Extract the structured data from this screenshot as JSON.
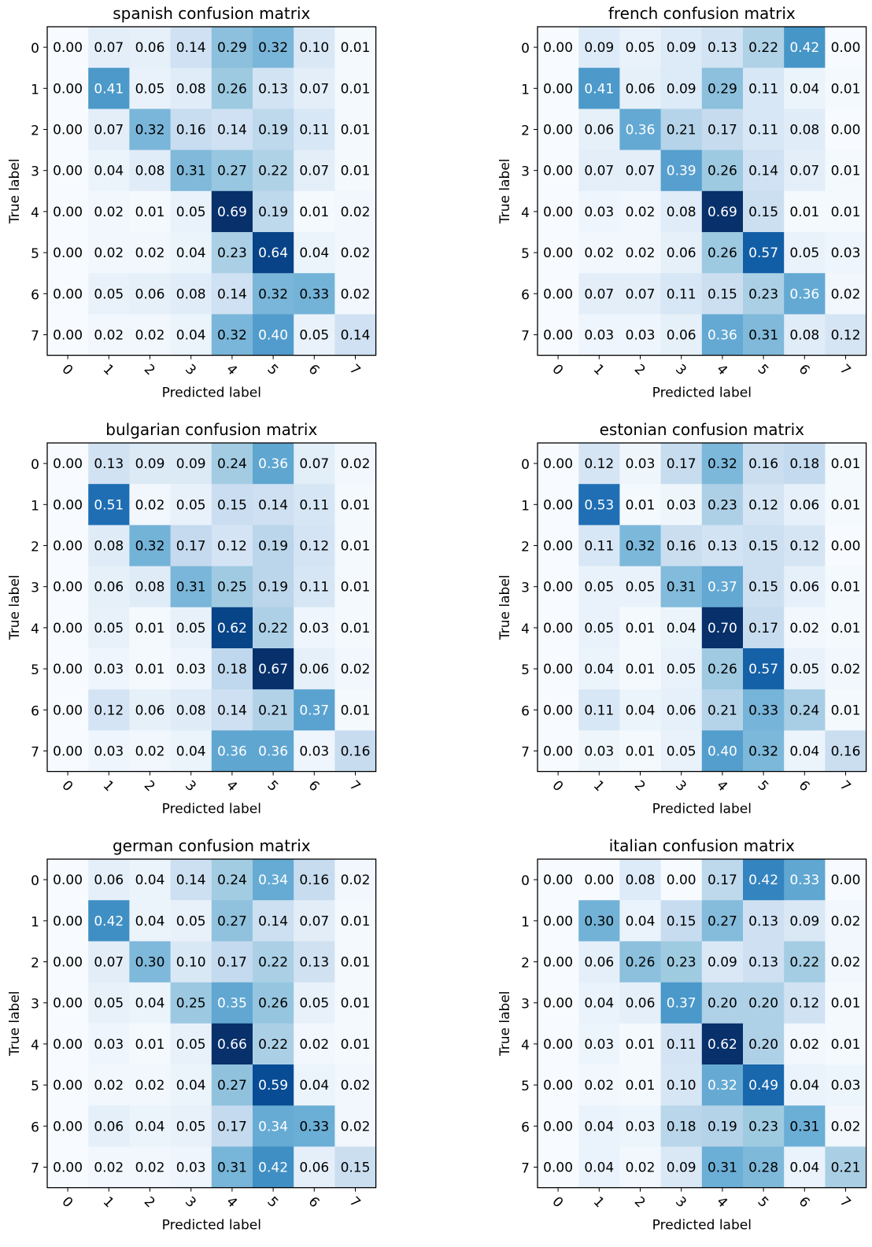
{
  "chart_data": [
    {
      "type": "heatmap",
      "title": "spanish confusion matrix",
      "xlabel": "Predicted label",
      "ylabel": "True label",
      "x_ticks": [
        "0",
        "1",
        "2",
        "3",
        "4",
        "5",
        "6",
        "7"
      ],
      "y_ticks": [
        "0",
        "1",
        "2",
        "3",
        "4",
        "5",
        "6",
        "7"
      ],
      "colormap": "Blues",
      "values": [
        [
          0.0,
          0.07,
          0.06,
          0.14,
          0.29,
          0.32,
          0.1,
          0.01
        ],
        [
          0.0,
          0.41,
          0.05,
          0.08,
          0.26,
          0.13,
          0.07,
          0.01
        ],
        [
          0.0,
          0.07,
          0.32,
          0.16,
          0.14,
          0.19,
          0.11,
          0.01
        ],
        [
          0.0,
          0.04,
          0.08,
          0.31,
          0.27,
          0.22,
          0.07,
          0.01
        ],
        [
          0.0,
          0.02,
          0.01,
          0.05,
          0.69,
          0.19,
          0.01,
          0.02
        ],
        [
          0.0,
          0.02,
          0.02,
          0.04,
          0.23,
          0.64,
          0.04,
          0.02
        ],
        [
          0.0,
          0.05,
          0.06,
          0.08,
          0.14,
          0.32,
          0.33,
          0.02
        ],
        [
          0.0,
          0.02,
          0.02,
          0.04,
          0.32,
          0.4,
          0.05,
          0.14
        ]
      ]
    },
    {
      "type": "heatmap",
      "title": "french confusion matrix",
      "xlabel": "Predicted label",
      "ylabel": "True label",
      "x_ticks": [
        "0",
        "1",
        "2",
        "3",
        "4",
        "5",
        "6",
        "7"
      ],
      "y_ticks": [
        "0",
        "1",
        "2",
        "3",
        "4",
        "5",
        "6",
        "7"
      ],
      "colormap": "Blues",
      "values": [
        [
          0.0,
          0.09,
          0.05,
          0.09,
          0.13,
          0.22,
          0.42,
          0.0
        ],
        [
          0.0,
          0.41,
          0.06,
          0.09,
          0.29,
          0.11,
          0.04,
          0.01
        ],
        [
          0.0,
          0.06,
          0.36,
          0.21,
          0.17,
          0.11,
          0.08,
          0.0
        ],
        [
          0.0,
          0.07,
          0.07,
          0.39,
          0.26,
          0.14,
          0.07,
          0.01
        ],
        [
          0.0,
          0.03,
          0.02,
          0.08,
          0.69,
          0.15,
          0.01,
          0.01
        ],
        [
          0.0,
          0.02,
          0.02,
          0.06,
          0.26,
          0.57,
          0.05,
          0.03
        ],
        [
          0.0,
          0.07,
          0.07,
          0.11,
          0.15,
          0.23,
          0.36,
          0.02
        ],
        [
          0.0,
          0.03,
          0.03,
          0.06,
          0.36,
          0.31,
          0.08,
          0.12
        ]
      ]
    },
    {
      "type": "heatmap",
      "title": "bulgarian confusion matrix",
      "xlabel": "Predicted label",
      "ylabel": "True label",
      "x_ticks": [
        "0",
        "1",
        "2",
        "3",
        "4",
        "5",
        "6",
        "7"
      ],
      "y_ticks": [
        "0",
        "1",
        "2",
        "3",
        "4",
        "5",
        "6",
        "7"
      ],
      "colormap": "Blues",
      "values": [
        [
          0.0,
          0.13,
          0.09,
          0.09,
          0.24,
          0.36,
          0.07,
          0.02
        ],
        [
          0.0,
          0.51,
          0.02,
          0.05,
          0.15,
          0.14,
          0.11,
          0.01
        ],
        [
          0.0,
          0.08,
          0.32,
          0.17,
          0.12,
          0.19,
          0.12,
          0.01
        ],
        [
          0.0,
          0.06,
          0.08,
          0.31,
          0.25,
          0.19,
          0.11,
          0.01
        ],
        [
          0.0,
          0.05,
          0.01,
          0.05,
          0.62,
          0.22,
          0.03,
          0.01
        ],
        [
          0.0,
          0.03,
          0.01,
          0.03,
          0.18,
          0.67,
          0.06,
          0.02
        ],
        [
          0.0,
          0.12,
          0.06,
          0.08,
          0.14,
          0.21,
          0.37,
          0.01
        ],
        [
          0.0,
          0.03,
          0.02,
          0.04,
          0.36,
          0.36,
          0.03,
          0.16
        ]
      ]
    },
    {
      "type": "heatmap",
      "title": "estonian confusion matrix",
      "xlabel": "Predicted label",
      "ylabel": "True label",
      "x_ticks": [
        "0",
        "1",
        "2",
        "3",
        "4",
        "5",
        "6",
        "7"
      ],
      "y_ticks": [
        "0",
        "1",
        "2",
        "3",
        "4",
        "5",
        "6",
        "7"
      ],
      "colormap": "Blues",
      "values": [
        [
          0.0,
          0.12,
          0.03,
          0.17,
          0.32,
          0.16,
          0.18,
          0.01
        ],
        [
          0.0,
          0.53,
          0.01,
          0.03,
          0.23,
          0.12,
          0.06,
          0.01
        ],
        [
          0.0,
          0.11,
          0.32,
          0.16,
          0.13,
          0.15,
          0.12,
          0.0
        ],
        [
          0.0,
          0.05,
          0.05,
          0.31,
          0.37,
          0.15,
          0.06,
          0.01
        ],
        [
          0.0,
          0.05,
          0.01,
          0.04,
          0.7,
          0.17,
          0.02,
          0.01
        ],
        [
          0.0,
          0.04,
          0.01,
          0.05,
          0.26,
          0.57,
          0.05,
          0.02
        ],
        [
          0.0,
          0.11,
          0.04,
          0.06,
          0.21,
          0.33,
          0.24,
          0.01
        ],
        [
          0.0,
          0.03,
          0.01,
          0.05,
          0.4,
          0.32,
          0.04,
          0.16
        ]
      ]
    },
    {
      "type": "heatmap",
      "title": "german confusion matrix",
      "xlabel": "Predicted label",
      "ylabel": "True label",
      "x_ticks": [
        "0",
        "1",
        "2",
        "3",
        "4",
        "5",
        "6",
        "7"
      ],
      "y_ticks": [
        "0",
        "1",
        "2",
        "3",
        "4",
        "5",
        "6",
        "7"
      ],
      "colormap": "Blues",
      "values": [
        [
          0.0,
          0.06,
          0.04,
          0.14,
          0.24,
          0.34,
          0.16,
          0.02
        ],
        [
          0.0,
          0.42,
          0.04,
          0.05,
          0.27,
          0.14,
          0.07,
          0.01
        ],
        [
          0.0,
          0.07,
          0.3,
          0.1,
          0.17,
          0.22,
          0.13,
          0.01
        ],
        [
          0.0,
          0.05,
          0.04,
          0.25,
          0.35,
          0.26,
          0.05,
          0.01
        ],
        [
          0.0,
          0.03,
          0.01,
          0.05,
          0.66,
          0.22,
          0.02,
          0.01
        ],
        [
          0.0,
          0.02,
          0.02,
          0.04,
          0.27,
          0.59,
          0.04,
          0.02
        ],
        [
          0.0,
          0.06,
          0.04,
          0.05,
          0.17,
          0.34,
          0.33,
          0.02
        ],
        [
          0.0,
          0.02,
          0.02,
          0.03,
          0.31,
          0.42,
          0.06,
          0.15
        ]
      ]
    },
    {
      "type": "heatmap",
      "title": "italian confusion matrix",
      "xlabel": "Predicted label",
      "ylabel": "True label",
      "x_ticks": [
        "0",
        "1",
        "2",
        "3",
        "4",
        "5",
        "6",
        "7"
      ],
      "y_ticks": [
        "0",
        "1",
        "2",
        "3",
        "4",
        "5",
        "6",
        "7"
      ],
      "colormap": "Blues",
      "values": [
        [
          0.0,
          0.0,
          0.08,
          0.0,
          0.17,
          0.42,
          0.33,
          0.0
        ],
        [
          0.0,
          0.3,
          0.04,
          0.15,
          0.27,
          0.13,
          0.09,
          0.02
        ],
        [
          0.0,
          0.06,
          0.26,
          0.23,
          0.09,
          0.13,
          0.22,
          0.02
        ],
        [
          0.0,
          0.04,
          0.06,
          0.37,
          0.2,
          0.2,
          0.12,
          0.01
        ],
        [
          0.0,
          0.03,
          0.01,
          0.11,
          0.62,
          0.2,
          0.02,
          0.01
        ],
        [
          0.0,
          0.02,
          0.01,
          0.1,
          0.32,
          0.49,
          0.04,
          0.03
        ],
        [
          0.0,
          0.04,
          0.03,
          0.18,
          0.19,
          0.23,
          0.31,
          0.02
        ],
        [
          0.0,
          0.04,
          0.02,
          0.09,
          0.31,
          0.28,
          0.04,
          0.21
        ]
      ]
    }
  ]
}
